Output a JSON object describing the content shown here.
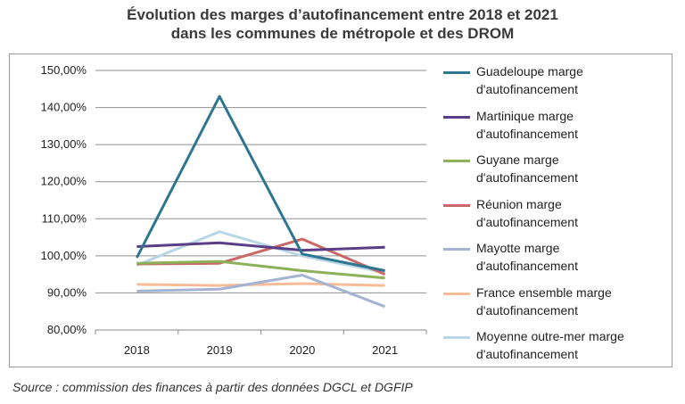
{
  "title_line1": "Évolution des marges d’autofinancement entre 2018 et 2021",
  "title_line2": "dans les communes de métropole et des DROM",
  "source": "Source : commission des finances à partir des données DGCL et DGFIP",
  "chart_data": {
    "type": "line",
    "title": "Évolution des marges d’autofinancement entre 2018 et 2021 dans les communes de métropole et des DROM",
    "xlabel": "",
    "ylabel": "",
    "categories": [
      "2018",
      "2019",
      "2020",
      "2021"
    ],
    "ylim": [
      80,
      150
    ],
    "yticks": [
      "80,00%",
      "90,00%",
      "100,00%",
      "110,00%",
      "120,00%",
      "130,00%",
      "140,00%",
      "150,00%"
    ],
    "grid": "horizontal",
    "legend_position": "right",
    "series": [
      {
        "name": "Guadeloupe marge d'autofinancement",
        "color": "#2e7590",
        "values": [
          99.5,
          143.0,
          100.5,
          96.0
        ]
      },
      {
        "name": "Martinique marge d'autofinancement",
        "color": "#5b3f86",
        "values": [
          102.5,
          103.5,
          101.5,
          102.3
        ]
      },
      {
        "name": "Guyane marge d'autofinancement",
        "color": "#8cb158",
        "values": [
          98.0,
          98.5,
          96.0,
          94.0
        ]
      },
      {
        "name": "Réunion marge d'autofinancement",
        "color": "#c96866",
        "values": [
          97.8,
          98.0,
          104.5,
          95.0
        ]
      },
      {
        "name": "Mayotte marge d'autofinancement",
        "color": "#a5b3d2",
        "values": [
          90.5,
          91.0,
          94.8,
          86.3
        ]
      },
      {
        "name": "France ensemble  marge d'autofinancement",
        "color": "#f4bd98",
        "values": [
          92.3,
          92.0,
          92.5,
          92.0
        ]
      },
      {
        "name": "Moyenne outre-mer marge d'autofinancement",
        "color": "#b8d6e6",
        "values": [
          97.5,
          106.5,
          100.0,
          95.5
        ]
      }
    ]
  }
}
